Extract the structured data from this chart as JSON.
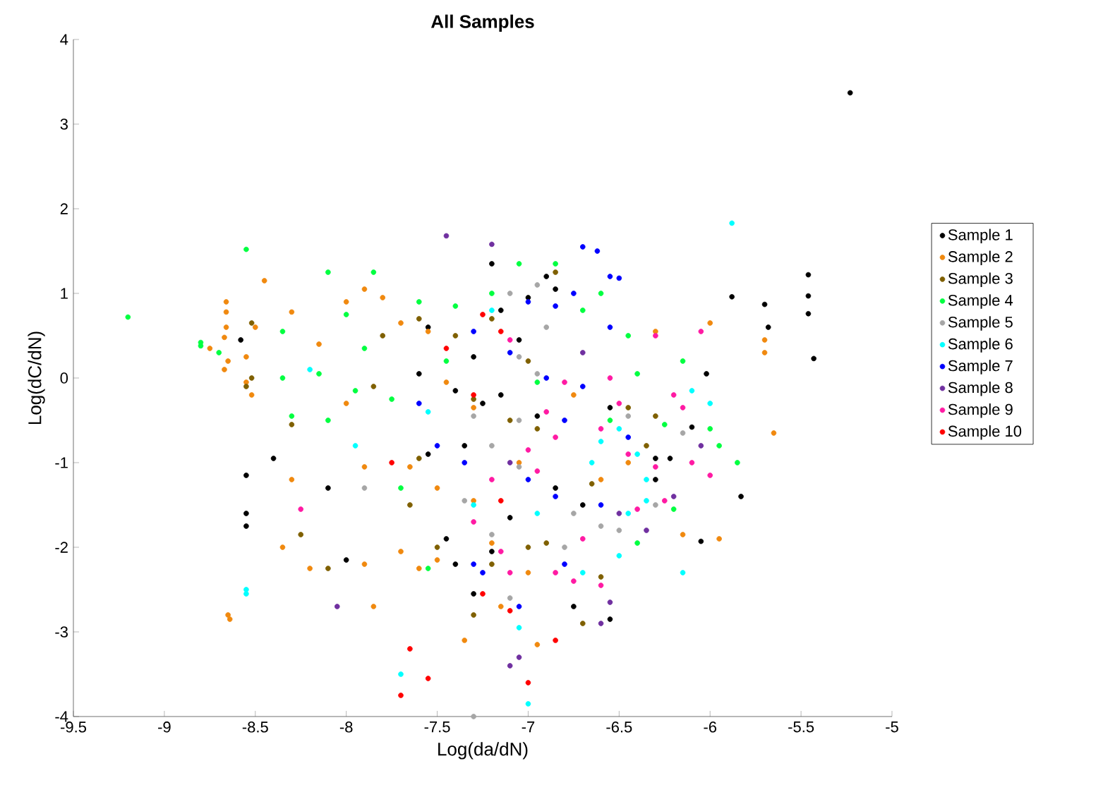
{
  "chart_data": {
    "type": "scatter",
    "title": "All Samples",
    "xlabel": "Log(da/dN)",
    "ylabel": "Log(dC/dN)",
    "xlim": [
      -9.5,
      -5
    ],
    "ylim": [
      -4,
      4
    ],
    "xticks": [
      -9.5,
      -9,
      -8.5,
      -8,
      -7.5,
      -7,
      -6.5,
      -6,
      -5.5,
      -5
    ],
    "yticks": [
      -4,
      -3,
      -2,
      -1,
      0,
      1,
      2,
      3,
      4
    ],
    "grid": false,
    "legend": "right",
    "marker": "circle",
    "series": [
      {
        "name": "Sample 1",
        "color": "#000000",
        "x": [
          -5.23,
          -5.46,
          -5.46,
          -5.46,
          -5.43,
          -5.7,
          -5.68,
          -5.88,
          -5.83,
          -6.02,
          -6.1,
          -6.22,
          -6.05,
          -6.3,
          -6.55,
          -6.75,
          -8.55,
          -8.55,
          -8.55,
          -8.1,
          -8.4,
          -8.58,
          -7.55,
          -7.3,
          -7.15,
          -7.0,
          -6.85,
          -7.4,
          -7.35,
          -7.25,
          -7.45,
          -7.4,
          -7.3,
          -7.2,
          -6.95,
          -6.85,
          -6.7,
          -7.1,
          -7.55,
          -7.6,
          -7.2,
          -6.9,
          -6.55,
          -6.3,
          -8.0,
          -7.15,
          -7.05
        ],
        "values": [
          3.37,
          1.22,
          0.97,
          0.76,
          0.23,
          0.87,
          0.6,
          0.96,
          -1.4,
          0.05,
          -0.58,
          -0.95,
          -1.93,
          -1.2,
          -2.85,
          -2.7,
          -1.15,
          -1.6,
          -1.75,
          -1.3,
          -0.95,
          0.45,
          0.6,
          0.25,
          0.8,
          0.95,
          1.05,
          -0.15,
          -0.8,
          -0.3,
          -1.9,
          -2.2,
          -2.55,
          -2.05,
          -0.45,
          -1.3,
          -1.5,
          -1.65,
          -0.9,
          0.05,
          1.35,
          1.2,
          -0.35,
          -0.95,
          -2.15,
          -0.2,
          0.45
        ]
      },
      {
        "name": "Sample 2",
        "color": "#f0890f",
        "x": [
          -8.65,
          -8.64,
          -8.66,
          -8.66,
          -8.66,
          -8.67,
          -8.65,
          -8.67,
          -8.55,
          -8.52,
          -8.55,
          -8.45,
          -8.5,
          -8.35,
          -8.2,
          -7.9,
          -7.85,
          -7.7,
          -7.6,
          -7.5,
          -8.3,
          -8.0,
          -7.9,
          -7.8,
          -7.7,
          -7.55,
          -7.45,
          -7.3,
          -7.5,
          -7.3,
          -7.2,
          -7.15,
          -7.35,
          -6.95,
          -6.3,
          -6.0,
          -5.7,
          -5.7,
          -5.65,
          -5.95,
          -6.15,
          -6.45,
          -6.6,
          -7.9,
          -8.15,
          -8.0,
          -7.0,
          -7.65,
          -8.3,
          -8.75,
          -7.05,
          -6.75
        ],
        "values": [
          -2.8,
          -2.85,
          0.9,
          0.78,
          0.6,
          0.48,
          0.2,
          0.1,
          -0.05,
          -0.2,
          0.25,
          1.15,
          0.6,
          -2.0,
          -2.25,
          -2.2,
          -2.7,
          -2.05,
          -2.25,
          -2.15,
          0.78,
          0.9,
          1.05,
          0.95,
          0.65,
          0.55,
          -0.05,
          -0.35,
          -1.3,
          -1.45,
          -1.95,
          -2.7,
          -3.1,
          -3.15,
          0.55,
          0.65,
          0.45,
          0.3,
          -0.65,
          -1.9,
          -1.85,
          -1.0,
          -1.2,
          -1.05,
          0.4,
          -0.3,
          -2.3,
          -1.05,
          -1.2,
          0.35,
          -1.0,
          -0.2
        ]
      },
      {
        "name": "Sample 3",
        "color": "#7f6000",
        "x": [
          -8.52,
          -8.52,
          -8.55,
          -8.3,
          -8.25,
          -8.1,
          -7.8,
          -7.6,
          -7.4,
          -7.2,
          -7.0,
          -6.85,
          -7.1,
          -7.3,
          -7.6,
          -7.5,
          -7.2,
          -7.0,
          -6.9,
          -6.65,
          -6.45,
          -6.3,
          -6.6,
          -6.35,
          -6.7,
          -7.3,
          -7.65,
          -6.95,
          -7.85
        ],
        "values": [
          0.65,
          0.0,
          -0.1,
          -0.55,
          -1.85,
          -2.25,
          0.5,
          0.7,
          0.5,
          0.7,
          0.2,
          1.25,
          -0.5,
          -0.25,
          -0.95,
          -2.0,
          -2.2,
          -2.0,
          -1.95,
          -1.25,
          -0.35,
          -0.45,
          -2.35,
          -0.8,
          -2.9,
          -2.8,
          -1.5,
          -0.6,
          -0.1
        ]
      },
      {
        "name": "Sample 4",
        "color": "#00ff40",
        "x": [
          -9.2,
          -8.8,
          -8.8,
          -8.55,
          -8.7,
          -8.35,
          -8.3,
          -8.1,
          -8.0,
          -7.85,
          -7.9,
          -7.75,
          -7.6,
          -7.45,
          -7.2,
          -7.05,
          -6.85,
          -6.7,
          -6.6,
          -6.45,
          -6.4,
          -6.25,
          -6.15,
          -6.0,
          -5.95,
          -5.85,
          -6.2,
          -6.4,
          -7.7,
          -7.55,
          -8.15,
          -7.95,
          -6.95,
          -6.55,
          -7.4,
          -8.35,
          -8.1
        ],
        "values": [
          0.72,
          0.38,
          0.42,
          1.52,
          0.3,
          0.0,
          -0.45,
          1.25,
          0.75,
          1.25,
          0.35,
          -0.25,
          0.9,
          0.2,
          1.0,
          1.35,
          1.35,
          0.8,
          1.0,
          0.5,
          0.05,
          -0.55,
          0.2,
          -0.6,
          -0.8,
          -1.0,
          -1.55,
          -1.95,
          -1.3,
          -2.25,
          0.05,
          -0.15,
          -0.05,
          -0.5,
          0.85,
          0.55,
          -0.5
        ]
      },
      {
        "name": "Sample 5",
        "color": "#a6a6a6",
        "x": [
          -7.1,
          -6.95,
          -6.9,
          -7.05,
          -6.95,
          -7.05,
          -7.3,
          -7.2,
          -7.35,
          -6.75,
          -6.6,
          -6.8,
          -7.05,
          -7.1,
          -6.15,
          -6.3,
          -6.45,
          -7.2,
          -7.9,
          -6.5,
          -7.3
        ],
        "values": [
          1.0,
          1.1,
          0.6,
          0.25,
          0.05,
          -0.5,
          -0.45,
          -0.8,
          -1.45,
          -1.6,
          -1.75,
          -2.0,
          -1.05,
          -2.6,
          -0.65,
          -1.5,
          -0.45,
          -1.85,
          -1.3,
          -1.8,
          -4.0
        ]
      },
      {
        "name": "Sample 6",
        "color": "#00ffff",
        "x": [
          -5.88,
          -8.55,
          -8.55,
          -7.7,
          -7.0,
          -8.2,
          -7.95,
          -7.55,
          -7.3,
          -7.2,
          -6.65,
          -6.6,
          -6.5,
          -6.4,
          -6.35,
          -6.45,
          -6.35,
          -6.1,
          -6.0,
          -6.15,
          -6.95,
          -6.7,
          -7.05,
          -6.5
        ],
        "values": [
          1.83,
          -2.5,
          -2.55,
          -3.5,
          -3.85,
          0.1,
          -0.8,
          -0.4,
          -1.5,
          0.8,
          -1.0,
          -0.75,
          -0.6,
          -0.9,
          -1.2,
          -1.6,
          -1.45,
          -0.15,
          -0.3,
          -2.3,
          -1.6,
          -2.3,
          -2.95,
          -2.1
        ]
      },
      {
        "name": "Sample 7",
        "color": "#0000ff",
        "x": [
          -6.7,
          -6.62,
          -6.55,
          -6.5,
          -6.75,
          -6.85,
          -7.0,
          -7.3,
          -7.1,
          -6.9,
          -6.7,
          -6.8,
          -7.5,
          -7.35,
          -7.0,
          -6.85,
          -7.3,
          -7.25,
          -7.05,
          -6.8,
          -6.6,
          -7.6,
          -6.45,
          -6.55
        ],
        "values": [
          1.55,
          1.5,
          1.2,
          1.18,
          1.0,
          0.85,
          0.9,
          0.55,
          0.3,
          0.0,
          -0.1,
          -0.5,
          -0.8,
          -1.0,
          -1.2,
          -1.4,
          -2.2,
          -2.3,
          -2.7,
          -2.2,
          -1.5,
          -0.3,
          -0.7,
          0.6
        ]
      },
      {
        "name": "Sample 8",
        "color": "#7030a0",
        "x": [
          -7.45,
          -7.2,
          -8.05,
          -7.05,
          -7.1,
          -6.6,
          -6.55,
          -6.2,
          -6.5,
          -6.35,
          -6.05,
          -6.7,
          -7.1
        ],
        "values": [
          1.68,
          1.58,
          -2.7,
          -3.3,
          -3.4,
          -2.9,
          -2.65,
          -1.4,
          -1.6,
          -1.8,
          -0.8,
          0.3,
          -1.0
        ]
      },
      {
        "name": "Sample 9",
        "color": "#ff1aa3",
        "x": [
          -6.8,
          -6.9,
          -6.85,
          -7.0,
          -6.6,
          -6.5,
          -6.55,
          -6.45,
          -6.3,
          -6.2,
          -6.15,
          -6.1,
          -6.0,
          -6.25,
          -6.7,
          -6.85,
          -7.1,
          -7.15,
          -7.3,
          -7.2,
          -6.95,
          -6.75,
          -6.6,
          -6.3,
          -6.05,
          -8.25,
          -7.1,
          -6.4
        ],
        "values": [
          -0.05,
          -0.4,
          -0.7,
          -0.85,
          -0.6,
          -0.3,
          0.0,
          -0.9,
          -1.05,
          -0.2,
          -0.35,
          -1.0,
          -1.15,
          -1.45,
          -1.9,
          -2.3,
          -2.3,
          -2.05,
          -1.7,
          -1.2,
          -1.1,
          -2.4,
          -2.45,
          0.5,
          0.55,
          -1.55,
          0.45,
          -1.55
        ]
      },
      {
        "name": "Sample 10",
        "color": "#ff0000",
        "x": [
          -7.25,
          -7.15,
          -7.3,
          -7.15,
          -7.25,
          -7.1,
          -7.65,
          -7.55,
          -7.0,
          -7.7,
          -6.85,
          -7.45,
          -7.75
        ],
        "values": [
          0.75,
          0.55,
          -0.2,
          -1.45,
          -2.55,
          -2.75,
          -3.2,
          -3.55,
          -3.6,
          -3.75,
          -3.1,
          0.35,
          -1.0
        ]
      }
    ]
  }
}
